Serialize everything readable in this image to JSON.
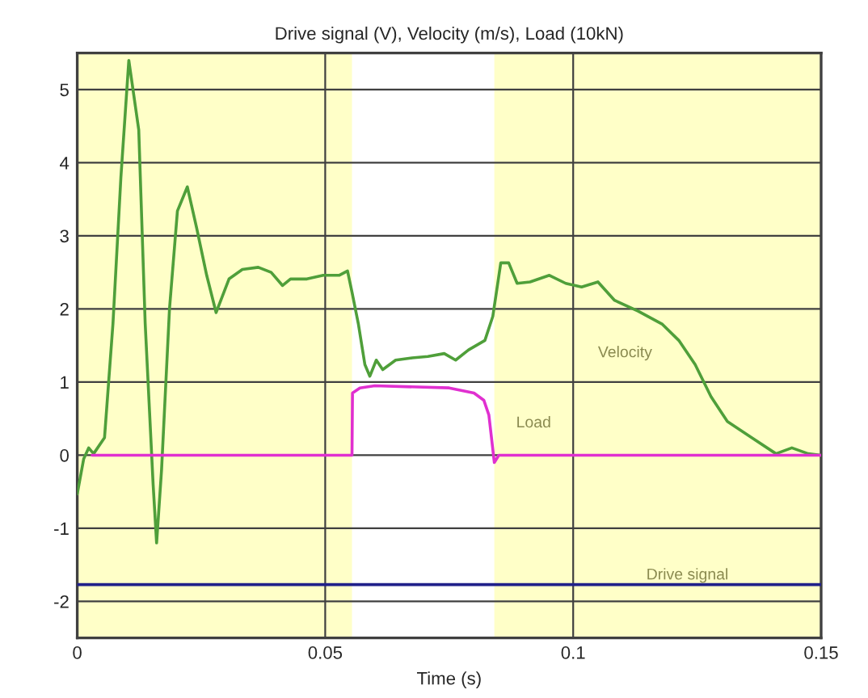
{
  "chart_data": {
    "type": "line",
    "title": "Drive signal (V), Velocity (m/s), Load (10kN)",
    "xlabel": "Time (s)",
    "xlim": [
      0,
      0.15
    ],
    "xticks": [
      0,
      0.05,
      0.1,
      0.15
    ],
    "ylim": [
      -2.5,
      5.5
    ],
    "yticks": [
      -2,
      -1,
      0,
      1,
      2,
      3,
      4,
      5
    ],
    "grid": true,
    "legend": false,
    "bands": [
      {
        "axis": "x",
        "from": 0.0554,
        "to": 0.0841,
        "color": "#ffffff"
      }
    ],
    "series": [
      {
        "name": "Velocity",
        "color": "#4f9f3a",
        "x": [
          0,
          0.0013,
          0.0023,
          0.0033,
          0.0055,
          0.0072,
          0.0088,
          0.0104,
          0.0124,
          0.0137,
          0.0153,
          0.016,
          0.017,
          0.0186,
          0.0202,
          0.0222,
          0.0241,
          0.0261,
          0.028,
          0.0306,
          0.0333,
          0.0365,
          0.0391,
          0.0414,
          0.043,
          0.0463,
          0.0496,
          0.0528,
          0.0545,
          0.0554,
          0.0567,
          0.058,
          0.059,
          0.0603,
          0.0616,
          0.0642,
          0.0675,
          0.0707,
          0.074,
          0.0763,
          0.0789,
          0.0822,
          0.0838,
          0.0854,
          0.087,
          0.0887,
          0.0913,
          0.0952,
          0.0985,
          0.1017,
          0.105,
          0.1083,
          0.1131,
          0.118,
          0.1213,
          0.1246,
          0.1278,
          0.1311,
          0.136,
          0.1409,
          0.1441,
          0.1474,
          0.15
        ],
        "values": [
          -0.53,
          -0.05,
          0.1,
          0.02,
          0.24,
          1.8,
          3.8,
          5.4,
          4.45,
          1.8,
          -0.4,
          -1.2,
          -0.2,
          2.0,
          3.34,
          3.67,
          3.1,
          2.46,
          1.95,
          2.41,
          2.54,
          2.57,
          2.5,
          2.32,
          2.41,
          2.41,
          2.46,
          2.46,
          2.52,
          2.23,
          1.79,
          1.24,
          1.08,
          1.3,
          1.17,
          1.3,
          1.33,
          1.35,
          1.39,
          1.3,
          1.44,
          1.57,
          1.9,
          2.63,
          2.63,
          2.35,
          2.37,
          2.46,
          2.35,
          2.3,
          2.37,
          2.12,
          1.97,
          1.79,
          1.57,
          1.24,
          0.8,
          0.46,
          0.24,
          0.02,
          0.1,
          0.02,
          0
        ]
      },
      {
        "name": "Load",
        "color": "#e030d0",
        "x": [
          0.003,
          0.0554,
          0.0555,
          0.057,
          0.06,
          0.075,
          0.08,
          0.082,
          0.083,
          0.0841,
          0.085,
          0.15
        ],
        "values": [
          0,
          0,
          0.85,
          0.92,
          0.95,
          0.92,
          0.85,
          0.75,
          0.55,
          -0.1,
          0,
          0
        ]
      },
      {
        "name": "Drive signal",
        "color": "#20208a",
        "x": [
          0,
          0.15
        ],
        "values": [
          -1.77,
          -1.77
        ]
      }
    ]
  }
}
